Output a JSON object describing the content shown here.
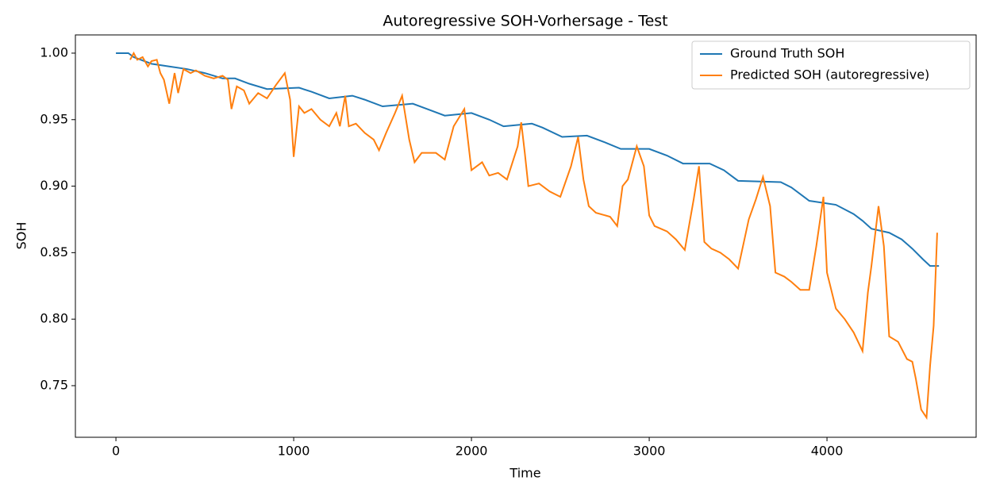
{
  "chart_data": {
    "type": "line",
    "title": "Autoregressive SOH-Vorhersage - Test",
    "xlabel": "Time",
    "ylabel": "SOH",
    "xlim": [
      -228,
      4839
    ],
    "ylim": [
      0.7112,
      1.0137
    ],
    "xticks": [
      0,
      1000,
      2000,
      3000,
      4000
    ],
    "yticks": [
      {
        "value": 0.75,
        "label": "0.75"
      },
      {
        "value": 0.8,
        "label": "0.80"
      },
      {
        "value": 0.85,
        "label": "0.85"
      },
      {
        "value": 0.9,
        "label": "0.90"
      },
      {
        "value": 0.95,
        "label": "0.95"
      },
      {
        "value": 1.0,
        "label": "1.00"
      }
    ],
    "legend": "upper right",
    "series": [
      {
        "name": "Ground Truth SOH",
        "color": "#1f77b4",
        "x": [
          0,
          70,
          100,
          200,
          300,
          400,
          500,
          600,
          670,
          750,
          850,
          1030,
          1100,
          1200,
          1330,
          1400,
          1500,
          1670,
          1750,
          1850,
          2000,
          2100,
          2180,
          2340,
          2400,
          2510,
          2650,
          2750,
          2840,
          3000,
          3100,
          3190,
          3340,
          3420,
          3460,
          3500,
          3740,
          3800,
          3900,
          4050,
          4150,
          4200,
          4250,
          4350,
          4420,
          4480,
          4540,
          4580,
          4630
        ],
        "values": [
          1.0,
          1.0,
          0.997,
          0.992,
          0.99,
          0.988,
          0.985,
          0.981,
          0.981,
          0.977,
          0.973,
          0.974,
          0.971,
          0.966,
          0.968,
          0.965,
          0.96,
          0.962,
          0.958,
          0.953,
          0.955,
          0.95,
          0.945,
          0.947,
          0.944,
          0.937,
          0.938,
          0.933,
          0.928,
          0.928,
          0.923,
          0.917,
          0.917,
          0.912,
          0.908,
          0.904,
          0.903,
          0.899,
          0.889,
          0.886,
          0.879,
          0.874,
          0.868,
          0.865,
          0.86,
          0.853,
          0.845,
          0.84,
          0.84
        ]
      },
      {
        "name": "Predicted SOH (autoregressive)",
        "color": "#ff7f0e",
        "x": [
          80,
          100,
          120,
          150,
          180,
          200,
          230,
          250,
          270,
          300,
          330,
          350,
          380,
          420,
          450,
          500,
          550,
          600,
          630,
          650,
          680,
          720,
          750,
          800,
          850,
          900,
          950,
          980,
          1000,
          1030,
          1060,
          1100,
          1150,
          1200,
          1240,
          1260,
          1290,
          1310,
          1350,
          1400,
          1450,
          1480,
          1520,
          1570,
          1610,
          1650,
          1680,
          1720,
          1800,
          1850,
          1900,
          1960,
          2000,
          2060,
          2100,
          2150,
          2200,
          2260,
          2280,
          2300,
          2320,
          2380,
          2440,
          2500,
          2560,
          2600,
          2630,
          2660,
          2700,
          2780,
          2820,
          2850,
          2880,
          2930,
          2970,
          3000,
          3030,
          3100,
          3150,
          3200,
          3250,
          3280,
          3310,
          3350,
          3400,
          3450,
          3500,
          3560,
          3600,
          3640,
          3680,
          3710,
          3760,
          3800,
          3850,
          3900,
          3940,
          3980,
          4000,
          4050,
          4100,
          4150,
          4200,
          4230,
          4250,
          4290,
          4320,
          4350,
          4400,
          4450,
          4480,
          4500,
          4530,
          4560,
          4580,
          4600,
          4620
        ],
        "values": [
          0.995,
          1.0,
          0.995,
          0.997,
          0.99,
          0.994,
          0.995,
          0.985,
          0.98,
          0.962,
          0.985,
          0.97,
          0.988,
          0.985,
          0.987,
          0.983,
          0.981,
          0.983,
          0.98,
          0.958,
          0.975,
          0.972,
          0.962,
          0.97,
          0.966,
          0.976,
          0.985,
          0.965,
          0.922,
          0.96,
          0.955,
          0.958,
          0.95,
          0.945,
          0.955,
          0.945,
          0.968,
          0.945,
          0.947,
          0.94,
          0.935,
          0.927,
          0.94,
          0.955,
          0.968,
          0.935,
          0.918,
          0.925,
          0.925,
          0.92,
          0.945,
          0.958,
          0.912,
          0.918,
          0.908,
          0.91,
          0.905,
          0.93,
          0.948,
          0.925,
          0.9,
          0.902,
          0.896,
          0.892,
          0.915,
          0.937,
          0.905,
          0.885,
          0.88,
          0.877,
          0.87,
          0.9,
          0.905,
          0.93,
          0.915,
          0.878,
          0.87,
          0.866,
          0.86,
          0.852,
          0.89,
          0.915,
          0.858,
          0.853,
          0.85,
          0.845,
          0.838,
          0.875,
          0.89,
          0.907,
          0.885,
          0.835,
          0.832,
          0.828,
          0.822,
          0.822,
          0.855,
          0.892,
          0.835,
          0.808,
          0.8,
          0.79,
          0.776,
          0.82,
          0.84,
          0.885,
          0.855,
          0.787,
          0.783,
          0.77,
          0.768,
          0.755,
          0.732,
          0.726,
          0.765,
          0.795,
          0.865
        ]
      }
    ]
  }
}
